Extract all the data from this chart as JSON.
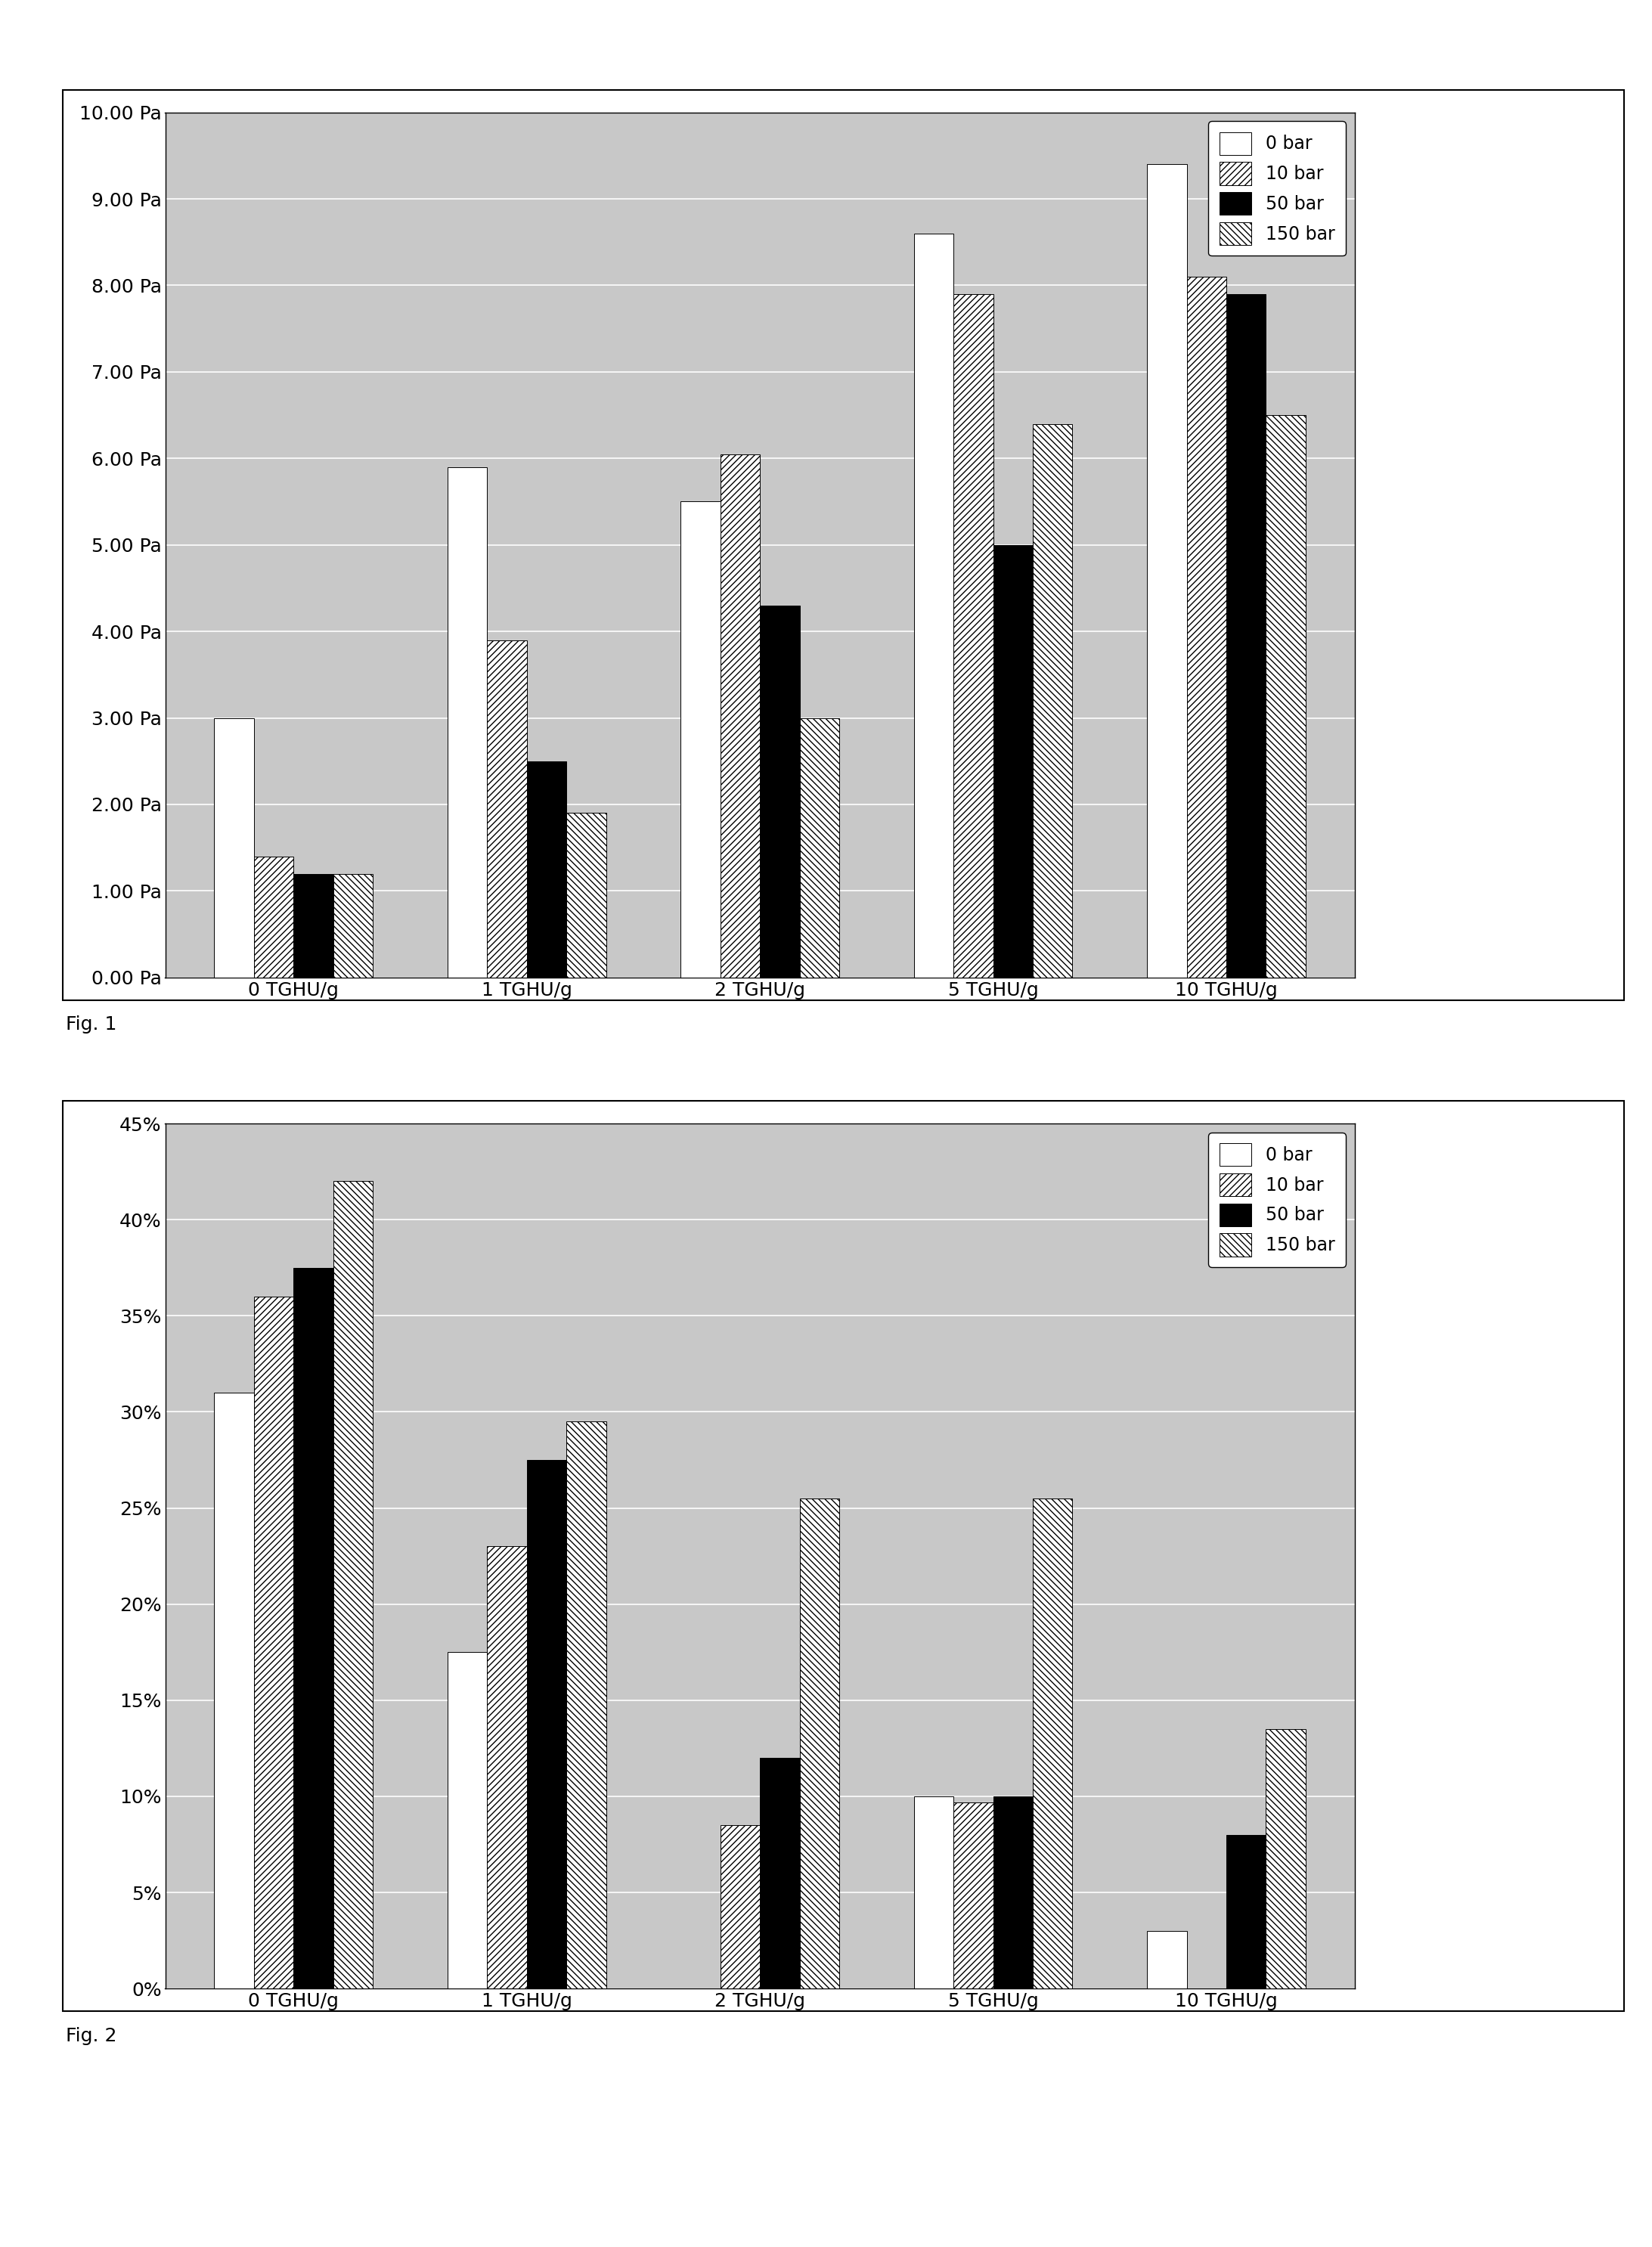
{
  "fig1": {
    "categories": [
      "0 TGHU/g",
      "1 TGHU/g",
      "2 TGHU/g",
      "5 TGHU/g",
      "10 TGHU/g"
    ],
    "series": {
      "0 bar": [
        3.0,
        5.9,
        5.5,
        8.6,
        9.4
      ],
      "10 bar": [
        1.4,
        3.9,
        6.05,
        7.9,
        8.1
      ],
      "50 bar": [
        1.2,
        2.5,
        4.3,
        5.0,
        7.9
      ],
      "150 bar": [
        1.2,
        1.9,
        3.0,
        6.4,
        6.5
      ]
    },
    "ylim": [
      0,
      10.0
    ],
    "yticks": [
      0.0,
      1.0,
      2.0,
      3.0,
      4.0,
      5.0,
      6.0,
      7.0,
      8.0,
      9.0,
      10.0
    ],
    "ytick_labels": [
      "0.00 Pa",
      "1.00 Pa",
      "2.00 Pa",
      "3.00 Pa",
      "4.00 Pa",
      "5.00 Pa",
      "6.00 Pa",
      "7.00 Pa",
      "8.00 Pa",
      "9.00 Pa",
      "10.00 Pa"
    ],
    "fig_label": "Fig. 1"
  },
  "fig2": {
    "categories": [
      "0 TGHU/g",
      "1 TGHU/g",
      "2 TGHU/g",
      "5 TGHU/g",
      "10 TGHU/g"
    ],
    "series": {
      "0 bar": [
        0.31,
        0.175,
        0.0,
        0.1,
        0.03
      ],
      "10 bar": [
        0.36,
        0.23,
        0.085,
        0.097,
        0.0
      ],
      "50 bar": [
        0.375,
        0.275,
        0.12,
        0.1,
        0.08
      ],
      "150 bar": [
        0.42,
        0.295,
        0.255,
        0.255,
        0.135
      ]
    },
    "ylim": [
      0,
      0.45
    ],
    "yticks": [
      0.0,
      0.05,
      0.1,
      0.15,
      0.2,
      0.25,
      0.3,
      0.35,
      0.4,
      0.45
    ],
    "ytick_labels": [
      "0%",
      "5%",
      "10%",
      "15%",
      "20%",
      "25%",
      "30%",
      "35%",
      "40%",
      "45%"
    ],
    "fig_label": "Fig. 2"
  },
  "legend_labels": [
    "0 bar",
    "10 bar",
    "50 bar",
    "150 bar"
  ],
  "bar_colors": [
    "white",
    "white",
    "black",
    "white"
  ],
  "hatch_patterns": [
    "",
    "////",
    "",
    "\\\\\\\\"
  ],
  "plot_bg_color": "#c8c8c8",
  "bar_width": 0.17,
  "font_size_ticks": 18,
  "font_size_legend": 17,
  "font_size_figlabel": 18
}
